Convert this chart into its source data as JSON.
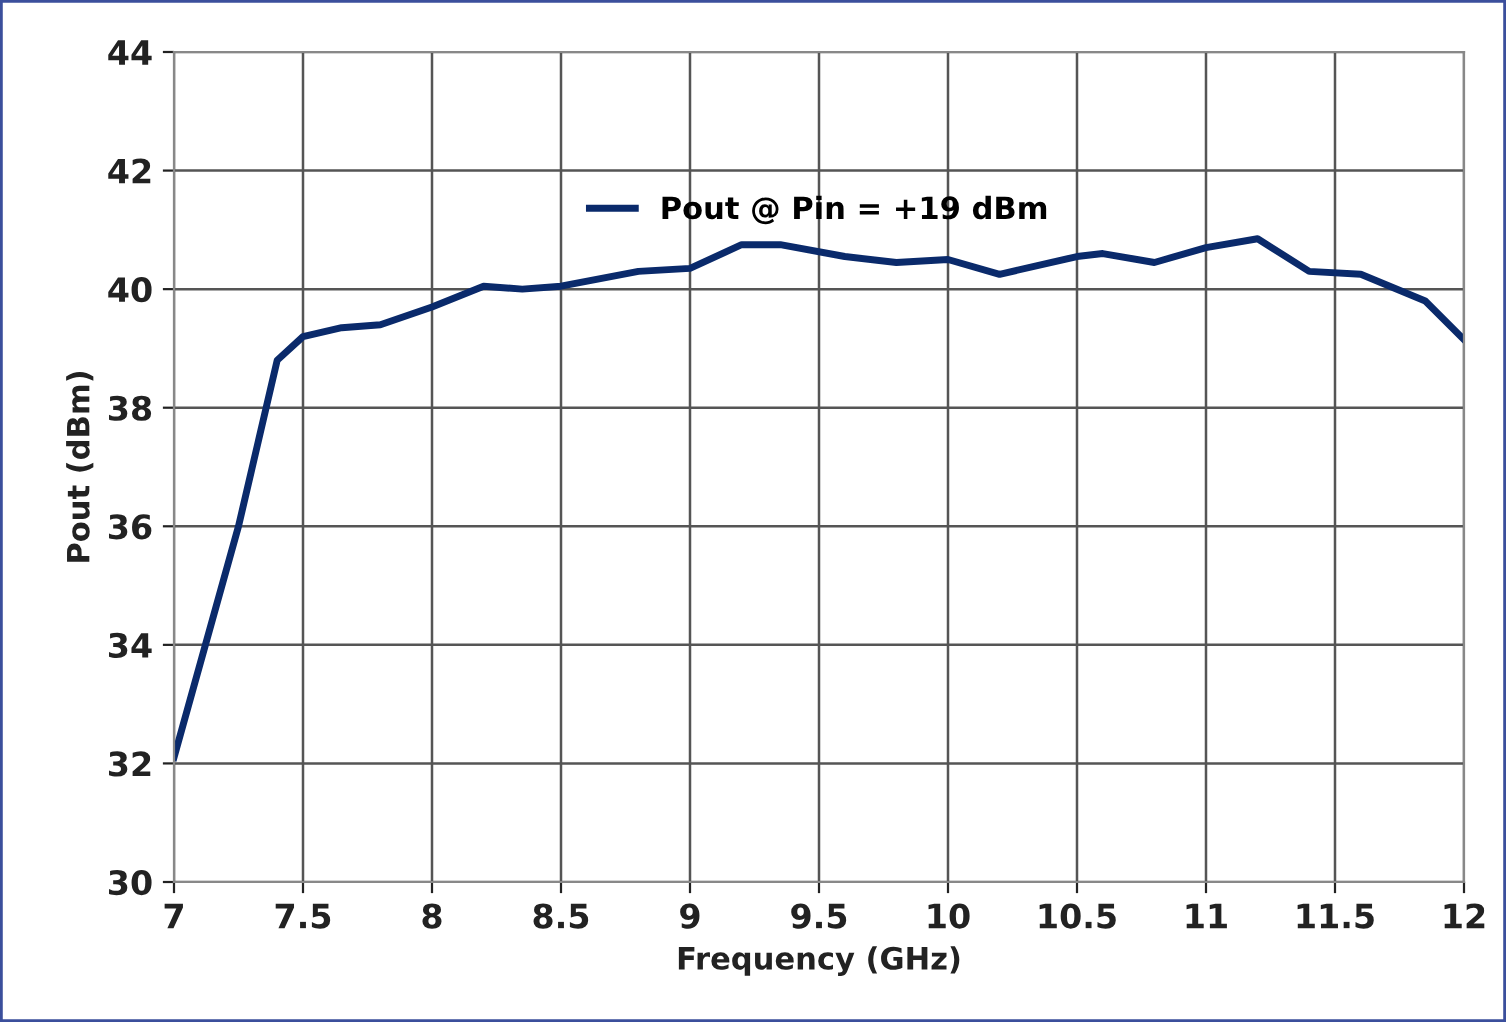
{
  "chart_data": {
    "type": "line",
    "xlabel": "Frequency (GHz)",
    "ylabel": "Pout (dBm)",
    "x": [
      7.0,
      7.25,
      7.4,
      7.5,
      7.65,
      7.8,
      8.0,
      8.2,
      8.35,
      8.5,
      8.8,
      9.0,
      9.2,
      9.35,
      9.6,
      9.8,
      10.0,
      10.2,
      10.5,
      10.6,
      10.8,
      11.0,
      11.2,
      11.4,
      11.6,
      11.85,
      12.0
    ],
    "series": [
      {
        "name": "Pout @ Pin = +19 dBm",
        "color": "#0a2a6b",
        "values": [
          32.1,
          36.0,
          38.8,
          39.2,
          39.35,
          39.4,
          39.7,
          40.05,
          40.0,
          40.05,
          40.3,
          40.35,
          40.75,
          40.75,
          40.55,
          40.45,
          40.5,
          40.25,
          40.55,
          40.6,
          40.45,
          40.7,
          40.85,
          40.3,
          40.25,
          39.8,
          39.15
        ]
      }
    ],
    "xlim": [
      7,
      12
    ],
    "xticks": [
      7,
      7.5,
      8,
      8.5,
      9,
      9.5,
      10,
      10.5,
      11,
      11.5,
      12
    ],
    "ylim": [
      30,
      44
    ],
    "yticks": [
      30,
      32,
      34,
      36,
      38,
      40,
      42,
      44
    ],
    "grid": true,
    "legend": "top",
    "marker": "none",
    "line_style": "solid"
  }
}
